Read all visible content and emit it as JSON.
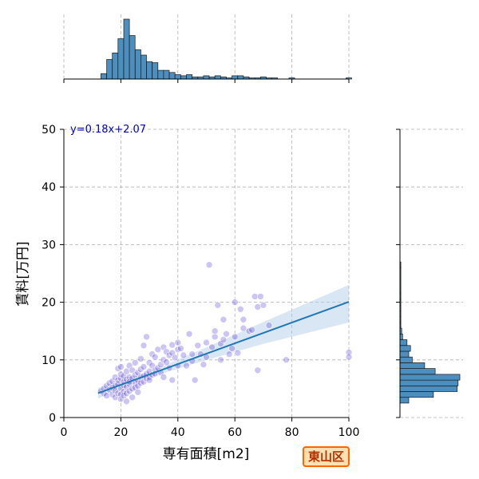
{
  "chart_data": {
    "type": "scatter",
    "xlabel": "専有面積[m2]",
    "ylabel": "賃料[万円]",
    "xlim": [
      0,
      100
    ],
    "ylim": [
      0,
      50
    ],
    "xticks": [
      0,
      20,
      40,
      60,
      80,
      100
    ],
    "yticks": [
      0,
      10,
      20,
      30,
      40,
      50
    ],
    "grid": true,
    "regression": {
      "label": "y=0.18x+2.07",
      "slope": 0.18,
      "intercept": 2.07,
      "x_range": [
        12,
        100
      ],
      "ci_lower_end": [
        12,
        3.3
      ],
      "ci_upper_end": [
        100,
        23.0
      ],
      "ci_lower_at_max": 16.5
    },
    "points": [
      [
        13,
        4.6
      ],
      [
        14,
        5.0
      ],
      [
        14,
        4.2
      ],
      [
        15,
        5.5
      ],
      [
        15,
        3.8
      ],
      [
        16,
        4.8
      ],
      [
        16,
        6.0
      ],
      [
        17,
        5.2
      ],
      [
        17,
        4.0
      ],
      [
        17,
        6.3
      ],
      [
        18,
        5.5
      ],
      [
        18,
        3.5
      ],
      [
        18,
        7.0
      ],
      [
        18,
        4.7
      ],
      [
        19,
        5.8
      ],
      [
        19,
        4.2
      ],
      [
        19,
        8.5
      ],
      [
        19,
        6.5
      ],
      [
        20,
        5.0
      ],
      [
        20,
        6.8
      ],
      [
        20,
        4.0
      ],
      [
        20,
        7.5
      ],
      [
        20,
        3.2
      ],
      [
        20,
        8.8
      ],
      [
        21,
        5.6
      ],
      [
        21,
        6.2
      ],
      [
        21,
        4.5
      ],
      [
        21,
        7.2
      ],
      [
        21,
        3.8
      ],
      [
        22,
        5.3
      ],
      [
        22,
        6.6
      ],
      [
        22,
        8.0
      ],
      [
        22,
        4.2
      ],
      [
        22,
        2.8
      ],
      [
        23,
        5.8
      ],
      [
        23,
        7.0
      ],
      [
        23,
        4.6
      ],
      [
        23,
        9.0
      ],
      [
        23,
        6.2
      ],
      [
        24,
        5.0
      ],
      [
        24,
        6.8
      ],
      [
        24,
        8.2
      ],
      [
        24,
        3.5
      ],
      [
        25,
        6.0
      ],
      [
        25,
        7.4
      ],
      [
        25,
        5.2
      ],
      [
        25,
        9.5
      ],
      [
        26,
        6.4
      ],
      [
        26,
        7.8
      ],
      [
        26,
        5.5
      ],
      [
        26,
        4.4
      ],
      [
        27,
        7.0
      ],
      [
        27,
        8.4
      ],
      [
        27,
        6.0
      ],
      [
        27,
        10.2
      ],
      [
        28,
        7.2
      ],
      [
        28,
        6.2
      ],
      [
        28,
        8.8
      ],
      [
        28,
        12.5
      ],
      [
        29,
        7.6
      ],
      [
        29,
        6.8
      ],
      [
        29,
        14.0
      ],
      [
        30,
        8.0
      ],
      [
        30,
        7.0
      ],
      [
        30,
        9.5
      ],
      [
        30,
        6.5
      ],
      [
        31,
        7.4
      ],
      [
        31,
        9.0
      ],
      [
        31,
        11.0
      ],
      [
        32,
        8.2
      ],
      [
        32,
        7.6
      ],
      [
        32,
        10.5
      ],
      [
        33,
        8.6
      ],
      [
        33,
        11.8
      ],
      [
        34,
        9.2
      ],
      [
        34,
        7.8
      ],
      [
        35,
        10.0
      ],
      [
        35,
        12.2
      ],
      [
        35,
        7.0
      ],
      [
        36,
        9.6
      ],
      [
        36,
        11.4
      ],
      [
        37,
        10.8
      ],
      [
        37,
        8.6
      ],
      [
        38,
        11.2
      ],
      [
        38,
        12.6
      ],
      [
        38,
        6.5
      ],
      [
        39,
        10.4
      ],
      [
        40,
        11.8
      ],
      [
        40,
        9.0
      ],
      [
        40,
        13.0
      ],
      [
        41,
        12.0
      ],
      [
        42,
        10.8
      ],
      [
        43,
        9.0
      ],
      [
        44,
        14.5
      ],
      [
        45,
        11.0
      ],
      [
        45,
        9.8
      ],
      [
        46,
        6.5
      ],
      [
        47,
        12.5
      ],
      [
        48,
        11.0
      ],
      [
        49,
        9.2
      ],
      [
        50,
        13.0
      ],
      [
        50,
        10.5
      ],
      [
        51,
        26.5
      ],
      [
        52,
        12.2
      ],
      [
        53,
        14.0
      ],
      [
        53,
        15.0
      ],
      [
        54,
        19.5
      ],
      [
        55,
        10.0
      ],
      [
        55,
        12.8
      ],
      [
        56,
        13.5
      ],
      [
        56,
        17.0
      ],
      [
        57,
        14.5
      ],
      [
        58,
        11.0
      ],
      [
        59,
        12.0
      ],
      [
        60,
        20.0
      ],
      [
        60,
        14.0
      ],
      [
        61,
        11.2
      ],
      [
        62,
        18.8
      ],
      [
        63,
        17.0
      ],
      [
        63,
        15.5
      ],
      [
        65,
        15.0
      ],
      [
        66,
        15.2
      ],
      [
        67,
        21.0
      ],
      [
        68,
        19.2
      ],
      [
        68,
        8.2
      ],
      [
        69,
        21.0
      ],
      [
        70,
        19.5
      ],
      [
        72,
        16.0
      ],
      [
        78,
        10.0
      ],
      [
        100,
        11.3
      ],
      [
        100,
        10.5
      ]
    ],
    "top_hist": {
      "range": [
        0,
        100
      ],
      "bin_edges": [
        13,
        15,
        17,
        19,
        21,
        23,
        25,
        27,
        29,
        31,
        33,
        35,
        37,
        39,
        41,
        43,
        45,
        47,
        49,
        51,
        53,
        55,
        57,
        59,
        61,
        63,
        65,
        67,
        69,
        71,
        73,
        75,
        77,
        79,
        81,
        83,
        85,
        87,
        89,
        91,
        93,
        95,
        97,
        99,
        101
      ],
      "counts": [
        5,
        18,
        24,
        37,
        55,
        40,
        27,
        22,
        16,
        15,
        8,
        8,
        6,
        4,
        3,
        4,
        2,
        2,
        3,
        2,
        3,
        2,
        1,
        3,
        3,
        2,
        1,
        1,
        2,
        1,
        1,
        0,
        0,
        1,
        0,
        0,
        0,
        0,
        0,
        0,
        0,
        0,
        0,
        1
      ]
    },
    "right_hist": {
      "range": [
        0,
        50
      ],
      "bin_edges": [
        2.5,
        3.5,
        4.5,
        5.5,
        6.5,
        7.5,
        8.5,
        9.5,
        10.5,
        11.5,
        12.5,
        13.5,
        14.5,
        15.5,
        16.5,
        17.5,
        18.5,
        19.5,
        20.5,
        21.5,
        26.0,
        27.0
      ],
      "counts": [
        10,
        38,
        65,
        66,
        68,
        40,
        28,
        14,
        10,
        12,
        8,
        3,
        2,
        1,
        1,
        1,
        1,
        1,
        1,
        1,
        1
      ]
    },
    "colors": {
      "scatter": "#5a3fd6",
      "regression": "#1f77b4",
      "ci_band": "#aac8e6",
      "hist_fill": "#4c8fbf",
      "grid": "#b0b0b0"
    }
  },
  "badge": {
    "label": "東山区",
    "fill": "#ffe0b0",
    "border": "#ff6600",
    "text": "#b03000"
  }
}
